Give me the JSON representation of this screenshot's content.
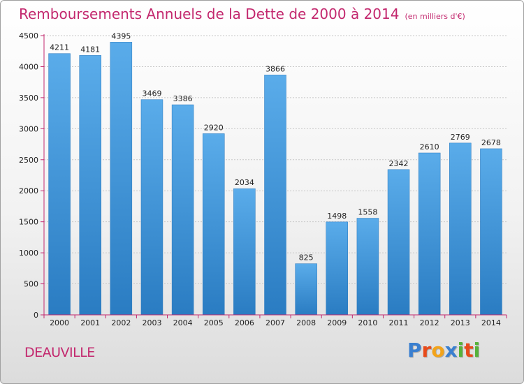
{
  "chart_data": {
    "type": "bar",
    "title": "Remboursements Annuels de la Dette de 2000 à 2014",
    "unit_note": "(en milliers d'€)",
    "categories": [
      "2000",
      "2001",
      "2002",
      "2003",
      "2004",
      "2005",
      "2006",
      "2007",
      "2008",
      "2009",
      "2010",
      "2011",
      "2012",
      "2013",
      "2014"
    ],
    "values": [
      4211,
      4181,
      4395,
      3469,
      3386,
      2920,
      2034,
      3866,
      825,
      1498,
      1558,
      2342,
      2610,
      2769,
      2678
    ],
    "yticks": [
      0,
      500,
      1000,
      1500,
      2000,
      2500,
      3000,
      3500,
      4000,
      4500
    ],
    "ylim": [
      0,
      4500
    ],
    "xlabel": "",
    "ylabel": "",
    "grid": true,
    "bar_color": "#3f97de",
    "axis_color": "#c3286e"
  },
  "footer": {
    "city": "DEAUVILLE",
    "brand_letters": [
      {
        "ch": "P",
        "color": "#3a7fd0"
      },
      {
        "ch": "r",
        "color": "#e84a1a"
      },
      {
        "ch": "o",
        "color": "#f2a31a"
      },
      {
        "ch": "x",
        "color": "#3a7fd0"
      },
      {
        "ch": "i",
        "color": "#56b23a"
      },
      {
        "ch": "t",
        "color": "#e84a1a"
      },
      {
        "ch": "i",
        "color": "#56b23a"
      }
    ]
  }
}
